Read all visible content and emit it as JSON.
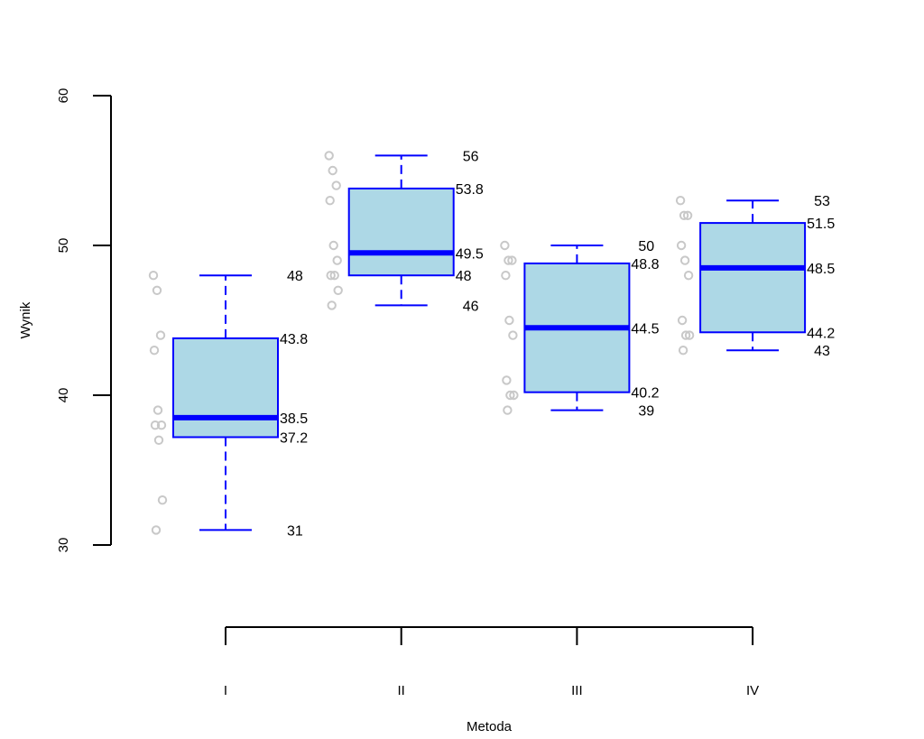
{
  "chart_data": {
    "type": "boxplot",
    "xlabel": "Metoda",
    "ylabel": "Wynik",
    "ylim": [
      30,
      60
    ],
    "yticks": [
      30,
      40,
      50,
      60
    ],
    "categories": [
      "I",
      "II",
      "III",
      "IV"
    ],
    "boxes": [
      {
        "name": "I",
        "min": 31,
        "q1": 37.2,
        "median": 38.5,
        "q3": 43.8,
        "max": 48,
        "labels": {
          "min": "31",
          "q1": "37.2",
          "median": "38.5",
          "q3": "43.8",
          "max": "48"
        },
        "points": [
          48,
          47,
          44,
          43,
          39,
          38,
          38,
          37,
          33,
          31
        ]
      },
      {
        "name": "II",
        "min": 46,
        "q1": 48,
        "median": 49.5,
        "q3": 53.8,
        "max": 56,
        "labels": {
          "min": "46",
          "q1": "48",
          "median": "49.5",
          "q3": "53.8",
          "max": "56"
        },
        "points": [
          56,
          55,
          54,
          53,
          50,
          49,
          48,
          48,
          47,
          46
        ]
      },
      {
        "name": "III",
        "min": 39,
        "q1": 40.2,
        "median": 44.5,
        "q3": 48.8,
        "max": 50,
        "labels": {
          "min": "39",
          "q1": "40.2",
          "median": "44.5",
          "q3": "48.8",
          "max": "50"
        },
        "points": [
          50,
          49,
          49,
          48,
          45,
          44,
          41,
          40,
          40,
          39
        ]
      },
      {
        "name": "IV",
        "min": 43,
        "q1": 44.2,
        "median": 48.5,
        "q3": 51.5,
        "max": 53,
        "labels": {
          "min": "43",
          "q1": "44.2",
          "median": "48.5",
          "q3": "51.5",
          "max": "53"
        },
        "points": [
          53,
          52,
          52,
          50,
          49,
          48,
          45,
          44,
          44,
          43
        ]
      }
    ],
    "colors": {
      "box_fill": "#add8e6",
      "box_border": "#0000ff",
      "median": "#0000ff",
      "whisker": "#0000ff",
      "points": "#c8c8c8",
      "axis": "#000000"
    }
  }
}
